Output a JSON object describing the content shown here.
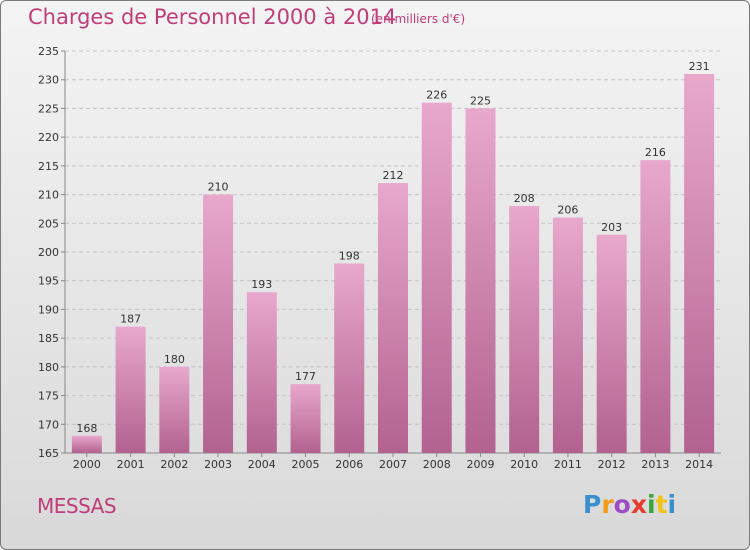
{
  "title": "Charges de Personnel 2000 à 2014",
  "subtitle": "(en milliers d'€)",
  "place": "MESSAS",
  "logo": {
    "letters": [
      "P",
      "r",
      "o",
      "x",
      "i",
      "t",
      "i"
    ],
    "colors": [
      "#3a8fd0",
      "#f39c1a",
      "#9c4cc4",
      "#e63b2e",
      "#3aa53a",
      "#f0c419",
      "#3a8fd0"
    ]
  },
  "colors": {
    "title": "#c13d79",
    "bar_top": "#e8a8cc",
    "bar_bottom": "#b2628f",
    "text": "#333333"
  },
  "chart_data": {
    "type": "bar",
    "title": "Charges de Personnel 2000 à 2014",
    "subtitle": "(en milliers d'€)",
    "categories": [
      "2000",
      "2001",
      "2002",
      "2003",
      "2004",
      "2005",
      "2006",
      "2007",
      "2008",
      "2009",
      "2010",
      "2011",
      "2012",
      "2013",
      "2014"
    ],
    "values": [
      168,
      187,
      180,
      210,
      193,
      177,
      198,
      212,
      226,
      225,
      208,
      206,
      203,
      216,
      231
    ],
    "ylim": [
      165,
      235
    ],
    "yticks": [
      165,
      170,
      175,
      180,
      185,
      190,
      195,
      200,
      205,
      210,
      215,
      220,
      225,
      230,
      235
    ],
    "xlabel": "",
    "ylabel": "",
    "grid": true,
    "legend": "none"
  }
}
